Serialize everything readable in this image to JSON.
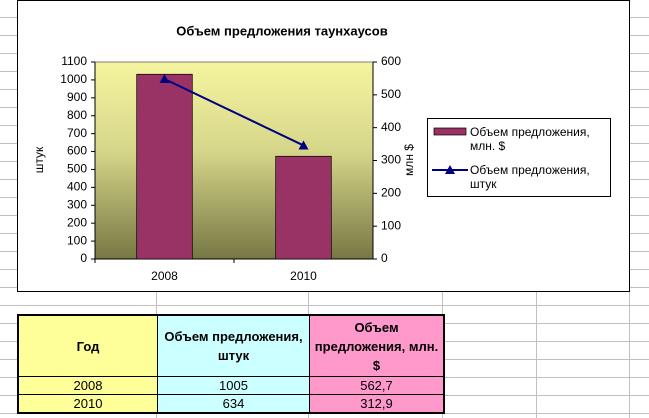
{
  "chart_data": {
    "type": "bar_line",
    "title": "Объем предложения таунхаусов",
    "categories": [
      "2008",
      "2010"
    ],
    "series": [
      {
        "name": "Объем предложения, млн. $",
        "color": "#993366",
        "type": "bar",
        "axis": "y2",
        "values": [
          562.7,
          312.9
        ]
      },
      {
        "name": "Объем предложения, штук",
        "color": "#000080",
        "type": "line",
        "axis": "y",
        "values": [
          1005,
          634
        ]
      }
    ],
    "ylabel": "штук",
    "y2label": "млн $",
    "ylim": [
      0,
      1100
    ],
    "yticks": [
      0,
      100,
      200,
      300,
      400,
      500,
      600,
      700,
      800,
      900,
      1000,
      1100
    ],
    "y2lim": [
      0,
      600
    ],
    "y2ticks": [
      0,
      100,
      200,
      300,
      400,
      500,
      600
    ],
    "legend": "right"
  },
  "table": {
    "header": [
      "Год",
      "Объем предложения, штук",
      "Объем предложения, млн. $"
    ],
    "rows": [
      [
        "2008",
        "1005",
        "562,7"
      ],
      [
        "2010",
        "634",
        "312,9"
      ]
    ]
  }
}
